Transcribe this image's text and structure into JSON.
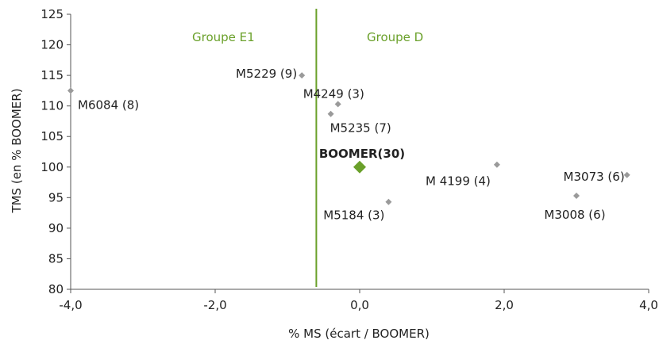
{
  "chart_data": {
    "type": "scatter",
    "xlabel": "% MS (écart / BOOMER)",
    "ylabel": "TMS (en % BOOMER)",
    "xlim": [
      -4.0,
      4.0
    ],
    "ylim": [
      80,
      125
    ],
    "xticks": [
      "-4,0",
      "-2,0",
      "0,0",
      "2,0",
      "4,0"
    ],
    "xtick_values": [
      -4,
      -2,
      0,
      2,
      4
    ],
    "yticks": [
      "80",
      "85",
      "90",
      "95",
      "100",
      "105",
      "110",
      "115",
      "120",
      "125"
    ],
    "ytick_values": [
      80,
      85,
      90,
      95,
      100,
      105,
      110,
      115,
      120,
      125
    ],
    "grid": false,
    "divider_x": -0.6,
    "groups": [
      {
        "label": "Groupe E1",
        "color": "#6aa02a"
      },
      {
        "label": "Groupe D",
        "color": "#6aa02a"
      }
    ],
    "points": [
      {
        "label": "M6084 (8)",
        "x": -4.0,
        "y": 112.5
      },
      {
        "label": "M5229 (9)",
        "x": -0.8,
        "y": 115.0
      },
      {
        "label": "M4249 (3)",
        "x": -0.3,
        "y": 110.3
      },
      {
        "label": "M5235 (7)",
        "x": -0.4,
        "y": 108.7
      },
      {
        "label": "BOOMER(30)",
        "x": 0.0,
        "y": 100.0,
        "highlight": true
      },
      {
        "label": "M5184 (3)",
        "x": 0.4,
        "y": 94.3
      },
      {
        "label": "M 4199 (4)",
        "x": 1.9,
        "y": 100.4
      },
      {
        "label": "M3073 (6)",
        "x": 3.7,
        "y": 98.7
      },
      {
        "label": "M3008 (6)",
        "x": 3.0,
        "y": 95.3
      }
    ],
    "colors": {
      "point": "#9a9a9a",
      "highlight": "#6aa02a",
      "divider": "#6aa02a",
      "axis": "#555555"
    }
  }
}
